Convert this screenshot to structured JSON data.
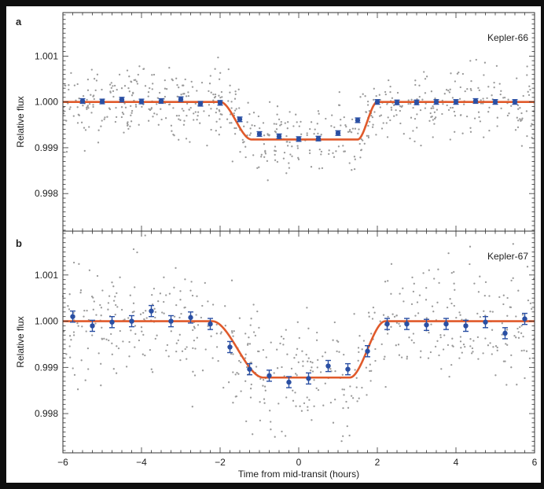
{
  "figure": {
    "background": "#ffffff",
    "xlabel": "Time from mid-transit (hours)"
  },
  "chart_data": [
    {
      "type": "scatter",
      "panel_label": "a",
      "annotation": "Kepler-66",
      "ylabel": "Relative flux",
      "xlim": [
        -6,
        6
      ],
      "ylim": [
        0.99718,
        1.00195
      ],
      "xticks": [
        -6,
        -4,
        -2,
        0,
        2,
        4,
        6
      ],
      "yticks": [
        0.998,
        0.999,
        1.0,
        1.001
      ],
      "ytick_labels": [
        "0.998",
        "0.999",
        "1.000",
        "1.001"
      ],
      "show_xtick_labels": false,
      "grid": false,
      "colors": {
        "raw": "#9a9a9a",
        "binned": "#2a4fa3",
        "model": "#e05a2b"
      },
      "model": {
        "name": "transit model",
        "depth": 0.00082,
        "ingress_start": -2.0,
        "ingress_end": -1.2,
        "egress_start": 1.5,
        "egress_end": 2.0
      },
      "raw_scatter": {
        "count": 650,
        "sigma": 0.00038,
        "seed": 66
      },
      "series": [
        {
          "name": "binned",
          "x": [
            -5.5,
            -5.0,
            -4.5,
            -4.0,
            -3.5,
            -3.0,
            -2.5,
            -2.0,
            -1.5,
            -1.0,
            -0.5,
            0.0,
            0.5,
            1.0,
            1.5,
            2.0,
            2.5,
            3.0,
            3.5,
            4.0,
            4.5,
            5.0,
            5.5
          ],
          "y": [
            1.00002,
            1.00001,
            1.00005,
            1.00001,
            1.00002,
            1.00006,
            0.99996,
            0.99998,
            0.99962,
            0.9993,
            0.99925,
            0.99919,
            0.9992,
            0.99932,
            0.9996,
            1.0,
            0.99999,
            0.99999,
            1.0,
            1.0,
            1.00002,
            1.0,
            1.0
          ],
          "err": [
            5e-05,
            5e-05,
            5e-05,
            5e-05,
            5e-05,
            5e-05,
            5e-05,
            5e-05,
            5e-05,
            5e-05,
            5e-05,
            5e-05,
            5e-05,
            5e-05,
            5e-05,
            5e-05,
            5e-05,
            5e-05,
            5e-05,
            5e-05,
            5e-05,
            5e-05,
            5e-05
          ]
        }
      ]
    },
    {
      "type": "scatter",
      "panel_label": "b",
      "annotation": "Kepler-67",
      "ylabel": "Relative flux",
      "xlim": [
        -6,
        6
      ],
      "ylim": [
        0.99715,
        1.00195
      ],
      "xticks": [
        -6,
        -4,
        -2,
        0,
        2,
        4,
        6
      ],
      "xtick_labels": [
        "−6",
        "−4",
        "−2",
        "0",
        "2",
        "4",
        "6"
      ],
      "yticks": [
        0.998,
        0.999,
        1.0,
        1.001
      ],
      "ytick_labels": [
        "0.998",
        "0.999",
        "1.000",
        "1.001"
      ],
      "show_xtick_labels": true,
      "grid": false,
      "colors": {
        "raw": "#9a9a9a",
        "binned": "#2a4fa3",
        "model": "#e05a2b"
      },
      "model": {
        "name": "transit model",
        "depth": 0.00122,
        "ingress_start": -2.2,
        "ingress_end": -0.9,
        "egress_start": 1.3,
        "egress_end": 2.2
      },
      "raw_scatter": {
        "count": 560,
        "sigma": 0.00063,
        "seed": 67
      },
      "series": [
        {
          "name": "binned",
          "x": [
            -5.75,
            -5.25,
            -4.75,
            -4.25,
            -3.75,
            -3.25,
            -2.75,
            -2.25,
            -1.75,
            -1.25,
            -0.75,
            -0.25,
            0.25,
            0.75,
            1.25,
            1.75,
            2.25,
            2.75,
            3.25,
            3.75,
            4.25,
            4.75,
            5.25,
            5.75
          ],
          "y": [
            1.0001,
            0.9999,
            0.99998,
            1.0,
            1.00022,
            1.0,
            1.00008,
            0.99994,
            0.99944,
            0.99896,
            0.99882,
            0.99868,
            0.99876,
            0.99903,
            0.99896,
            0.99935,
            0.99994,
            0.99994,
            0.99992,
            0.99994,
            0.9999,
            0.99998,
            0.99974,
            1.00005
          ],
          "err": [
            0.00012,
            0.00012,
            0.00012,
            0.00012,
            0.00012,
            0.00012,
            0.00012,
            0.00012,
            0.00012,
            0.00012,
            0.00012,
            0.00012,
            0.00012,
            0.00012,
            0.00012,
            0.00012,
            0.00012,
            0.00012,
            0.00012,
            0.00012,
            0.00012,
            0.00012,
            0.00012,
            0.00012
          ]
        }
      ]
    }
  ]
}
